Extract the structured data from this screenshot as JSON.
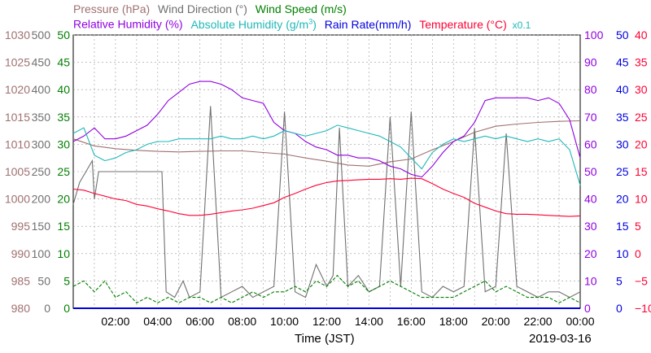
{
  "legend": {
    "pressure": "Pressure (hPa)",
    "wind_direction": "Wind Direction (°)",
    "wind_speed": "Wind Speed (m/s)",
    "relative_humidity": "Relative Humidity (%)",
    "absolute_humidity": "Absolute Humidity (g/m",
    "absolute_humidity_sup": "3",
    "absolute_humidity_close": ")",
    "rain_rate": "Rain Rate(mm/h)",
    "temperature": "Temperature (°C)",
    "factor": "x0.1"
  },
  "xlabel": "Time (JST)",
  "date": "2019-03-16",
  "colors": {
    "pressure": "#a07070",
    "wind_direction": "#707070",
    "wind_speed": "#007f00",
    "relative_humidity": "#9000e0",
    "absolute_humidity": "#20b8b8",
    "rain_rate": "#0000e0",
    "temperature": "#ff0033"
  },
  "chart_data": {
    "type": "line",
    "x_label": "Time (JST)",
    "x_range_hours": [
      0,
      24
    ],
    "x_ticks": [
      "02:00",
      "04:00",
      "06:00",
      "08:00",
      "10:00",
      "12:00",
      "14:00",
      "16:00",
      "18:00",
      "20:00",
      "22:00",
      "00:00"
    ],
    "grid": true,
    "axes": {
      "pressure": {
        "range": [
          980,
          1030
        ],
        "ticks": [
          "980",
          "985",
          "990",
          "995",
          "1000",
          "1005",
          "1010",
          "1015",
          "1020",
          "1025",
          "1030"
        ]
      },
      "wind_direction": {
        "range": [
          0,
          500
        ],
        "ticks": [
          "0",
          "50",
          "100",
          "150",
          "200",
          "250",
          "300",
          "350",
          "400",
          "450",
          "500"
        ]
      },
      "wind_speed": {
        "range": [
          0,
          50
        ],
        "ticks": [
          "0",
          "5",
          "10",
          "15",
          "20",
          "25",
          "30",
          "35",
          "40",
          "45",
          "50"
        ]
      },
      "relative_humidity": {
        "range": [
          0,
          100
        ],
        "ticks": [
          "0",
          "10",
          "20",
          "30",
          "40",
          "50",
          "60",
          "70",
          "80",
          "90",
          "100"
        ]
      },
      "rain_rate": {
        "range": [
          0,
          50
        ],
        "ticks": [
          "0",
          "5",
          "10",
          "15",
          "20",
          "25",
          "30",
          "35",
          "40",
          "45",
          "50"
        ]
      },
      "temperature": {
        "range": [
          -10,
          40
        ],
        "ticks": [
          "−10",
          "−5",
          "0",
          "5",
          "10",
          "15",
          "20",
          "25",
          "30",
          "35",
          "40"
        ]
      }
    },
    "series": [
      {
        "name": "Pressure (hPa)",
        "key": "pressure",
        "axis": "pressure",
        "x": [
          0,
          1,
          2,
          3,
          4,
          5,
          6,
          7,
          8,
          9,
          10,
          11,
          12,
          13,
          14,
          15,
          16,
          17,
          18,
          19,
          20,
          21,
          22,
          23,
          24
        ],
        "y": [
          1011,
          1009.7,
          1009.2,
          1008.9,
          1008.7,
          1008.6,
          1008.7,
          1008.8,
          1008.8,
          1008.5,
          1008.2,
          1007.5,
          1006.9,
          1006.2,
          1006,
          1006.8,
          1007.3,
          1009,
          1010.5,
          1012.2,
          1013.3,
          1013.7,
          1014,
          1014.2,
          1014.3
        ]
      },
      {
        "name": "Wind Direction (°)",
        "key": "wind_direction",
        "axis": "wind_direction",
        "x": [
          0,
          0.3,
          0.6,
          0.9,
          1,
          1.2,
          1.5,
          2,
          2.5,
          3,
          3.5,
          4,
          4.2,
          4.4,
          4.8,
          5.2,
          5.5,
          6,
          6.5,
          7,
          7.5,
          8,
          8.5,
          9,
          9.5,
          10,
          10.5,
          11,
          11.5,
          12,
          12.3,
          12.6,
          13,
          13.5,
          14,
          14.5,
          15,
          15.5,
          16,
          16.5,
          17,
          17.5,
          18,
          18.5,
          19,
          19.5,
          20,
          20.5,
          21,
          21.5,
          22,
          22.5,
          23,
          23.5,
          24
        ],
        "y": [
          190,
          230,
          250,
          270,
          200,
          250,
          250,
          250,
          250,
          250,
          250,
          250,
          250,
          30,
          20,
          50,
          20,
          30,
          370,
          20,
          30,
          40,
          20,
          30,
          40,
          360,
          30,
          20,
          80,
          40,
          60,
          330,
          40,
          60,
          30,
          40,
          350,
          40,
          360,
          30,
          20,
          40,
          30,
          40,
          330,
          30,
          40,
          320,
          40,
          30,
          20,
          30,
          30,
          20,
          30
        ]
      },
      {
        "name": "Wind Speed (m/s)",
        "key": "wind_speed",
        "axis": "wind_speed",
        "x": [
          0,
          0.5,
          1,
          1.5,
          2,
          2.5,
          3,
          3.5,
          4,
          4.5,
          5,
          5.5,
          6,
          6.5,
          7,
          7.5,
          8,
          8.5,
          9,
          9.5,
          10,
          10.5,
          11,
          11.5,
          12,
          12.5,
          13,
          13.5,
          14,
          14.5,
          15,
          15.5,
          16,
          16.5,
          17,
          17.5,
          18,
          18.5,
          19,
          19.5,
          20,
          20.5,
          21,
          21.5,
          22,
          22.5,
          23,
          23.5,
          24
        ],
        "y": [
          4,
          5,
          3,
          5,
          2,
          3,
          1,
          2,
          1,
          2,
          1,
          2,
          2,
          1,
          2,
          1,
          2,
          3,
          2,
          3,
          3,
          4,
          3,
          5,
          4,
          6,
          4,
          5,
          3,
          4,
          5,
          4,
          3,
          2,
          2,
          2,
          2,
          3,
          4,
          5,
          3,
          4,
          3,
          2,
          2,
          2,
          1,
          2,
          1
        ]
      },
      {
        "name": "Relative Humidity (%)",
        "key": "relative_humidity",
        "axis": "relative_humidity",
        "x": [
          0,
          0.5,
          1,
          1.5,
          2,
          2.5,
          3,
          3.5,
          4,
          4.5,
          5,
          5.5,
          6,
          6.5,
          7,
          7.5,
          8,
          8.5,
          9,
          9.5,
          10,
          10.5,
          11,
          11.5,
          12,
          12.5,
          13,
          13.5,
          14,
          14.5,
          15,
          15.5,
          16,
          16.5,
          17,
          17.5,
          18,
          18.5,
          19,
          19.5,
          20,
          20.5,
          21,
          21.5,
          22,
          22.5,
          23,
          23.5,
          24
        ],
        "y": [
          61,
          63,
          66,
          62,
          62,
          63,
          65,
          67,
          71,
          76,
          79,
          82,
          83,
          83,
          82,
          80,
          77,
          76,
          75,
          68,
          65,
          64,
          61,
          59,
          58,
          56,
          56,
          55,
          55,
          54,
          52,
          51,
          49,
          48,
          52,
          57,
          61,
          63,
          68,
          76,
          77,
          77,
          77,
          77,
          76,
          77,
          75,
          69,
          55
        ]
      },
      {
        "name": "Absolute Humidity (g/m3)",
        "key": "absolute_humidity",
        "axis": "relative_humidity",
        "x": [
          0,
          0.5,
          1,
          1.5,
          2,
          2.5,
          3,
          3.5,
          4,
          4.5,
          5,
          5.5,
          6,
          6.5,
          7,
          7.5,
          8,
          8.5,
          9,
          9.5,
          10,
          10.5,
          11,
          11.5,
          12,
          12.5,
          13,
          13.5,
          14,
          14.5,
          15,
          15.5,
          16,
          16.5,
          17,
          17.5,
          18,
          18.5,
          19,
          19.5,
          20,
          20.5,
          21,
          21.5,
          22,
          22.5,
          23,
          23.5,
          24
        ],
        "y": [
          64,
          66,
          56,
          54,
          55,
          57,
          58,
          60,
          61,
          61,
          62,
          62,
          62,
          62,
          63,
          62,
          62,
          63,
          62,
          63,
          65,
          64,
          63,
          64,
          65,
          67,
          66,
          65,
          64,
          63,
          61,
          59,
          55,
          51,
          57,
          60,
          62,
          61,
          62,
          63,
          62,
          63,
          62,
          61,
          62,
          61,
          62,
          58,
          45
        ]
      },
      {
        "name": "Rain Rate(mm/h)",
        "key": "rain_rate",
        "axis": "rain_rate",
        "x": [
          0,
          24
        ],
        "y": [
          0,
          0
        ]
      },
      {
        "name": "Temperature (°C)",
        "key": "temperature",
        "axis": "temperature",
        "x": [
          0,
          0.5,
          1,
          1.5,
          2,
          2.5,
          3,
          3.5,
          4,
          4.5,
          5,
          5.5,
          6,
          6.5,
          7,
          7.5,
          8,
          8.5,
          9,
          9.5,
          10,
          10.5,
          11,
          11.5,
          12,
          12.5,
          13,
          13.5,
          14,
          14.5,
          15,
          15.5,
          16,
          16.5,
          17,
          17.5,
          18,
          18.5,
          19,
          19.5,
          20,
          20.5,
          21,
          21.5,
          22,
          22.5,
          23,
          23.5,
          24
        ],
        "y": [
          11.8,
          11.6,
          11,
          10.5,
          10,
          9.7,
          9,
          8.7,
          8.2,
          7.8,
          7.3,
          7,
          7,
          7.2,
          7.5,
          7.8,
          8,
          8.3,
          8.8,
          9.3,
          10.3,
          11,
          11.8,
          12.5,
          13,
          13.3,
          13.4,
          13.5,
          13.6,
          13.6,
          13.7,
          13.6,
          13.8,
          13.7,
          12.8,
          11.8,
          11,
          10.3,
          9.2,
          8.5,
          7.8,
          7.3,
          7.2,
          7.2,
          7.1,
          7,
          6.9,
          6.8,
          6.9
        ]
      }
    ]
  }
}
